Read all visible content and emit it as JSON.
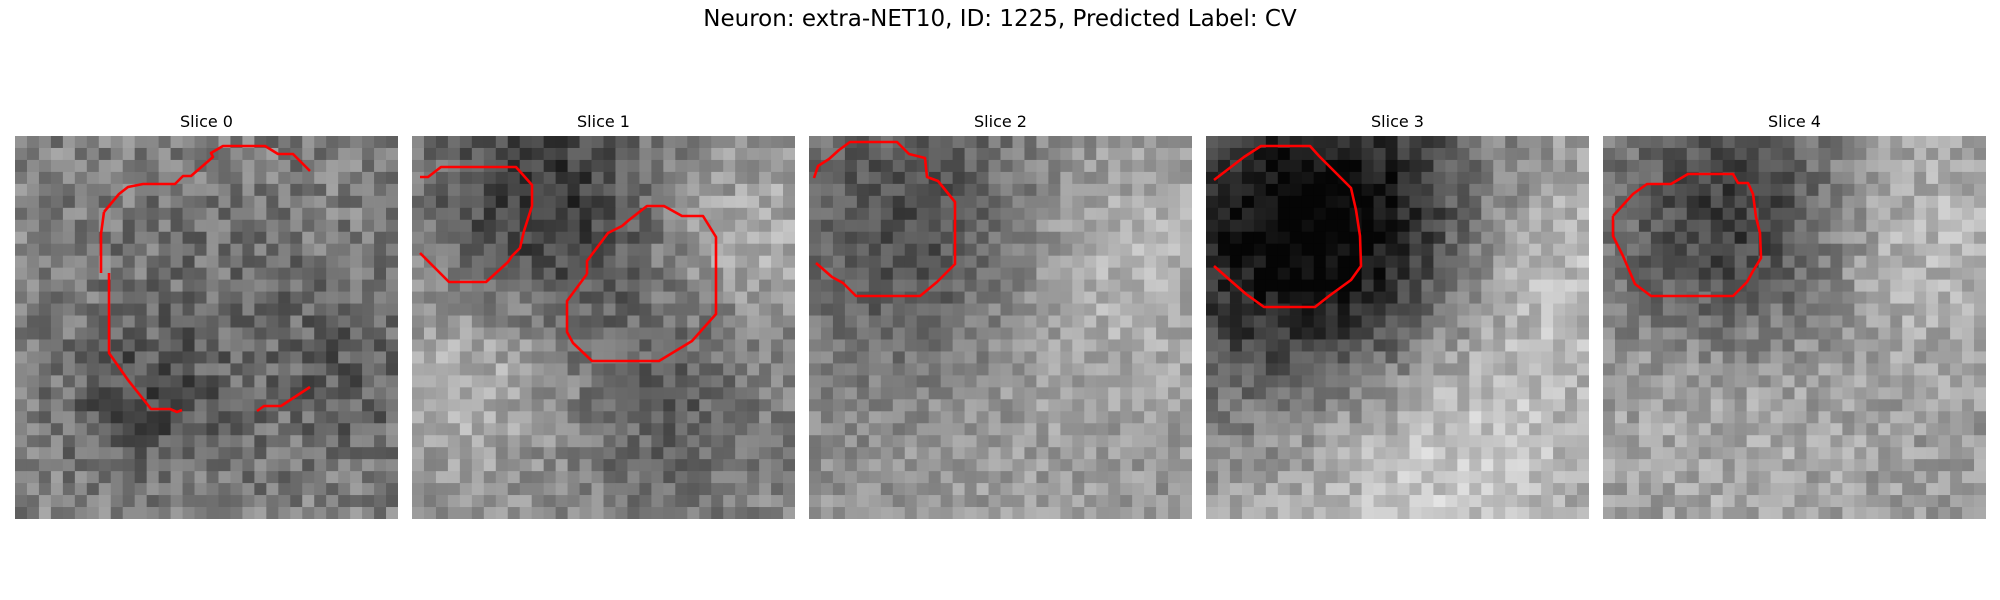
{
  "suptitle": "Neuron: extra-NET10, ID: 1225, Predicted Label: CV",
  "panels": [
    {
      "title": "Slice 0"
    },
    {
      "title": "Slice 1"
    },
    {
      "title": "Slice 2"
    },
    {
      "title": "Slice 3"
    },
    {
      "title": "Slice 4"
    }
  ],
  "contour_color": "#ff0000",
  "colormap": "gray"
}
